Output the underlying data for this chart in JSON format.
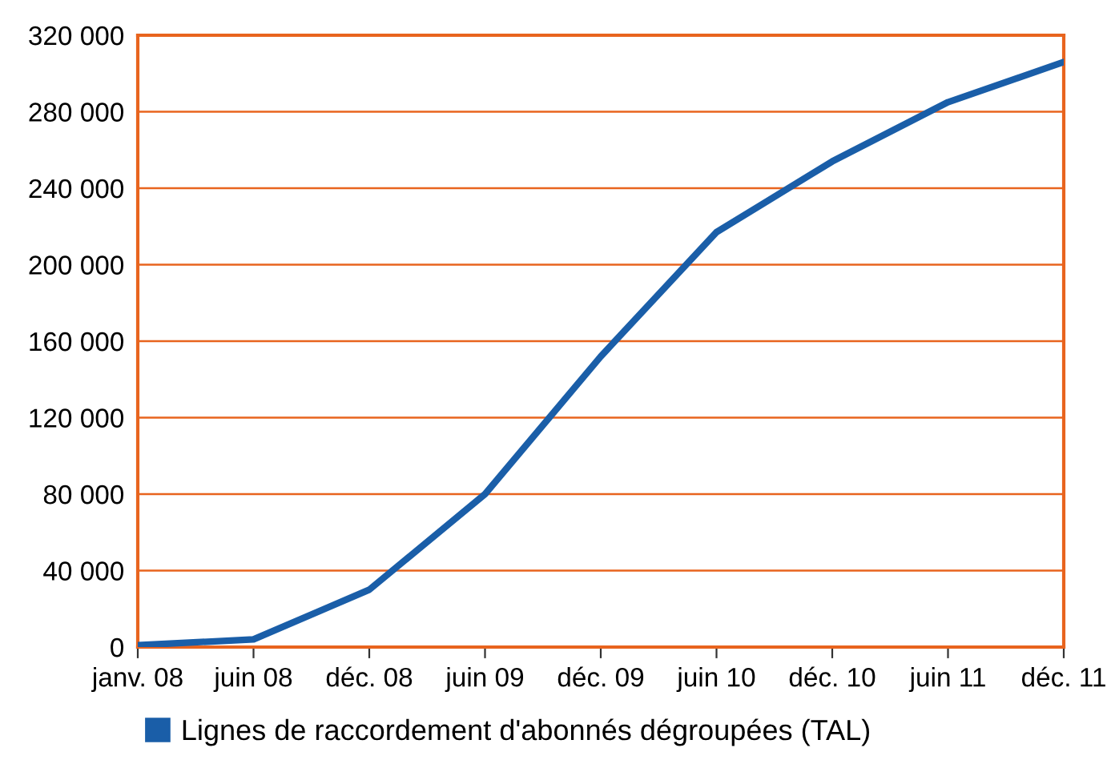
{
  "chart_data": {
    "type": "line",
    "categories": [
      "janv. 08",
      "juin 08",
      "déc. 08",
      "juin 09",
      "déc. 09",
      "juin 10",
      "déc. 10",
      "juin 11",
      "déc. 11"
    ],
    "series": [
      {
        "name": "Lignes de raccordement d'abonnés dégroupées (TAL)",
        "color": "#1a5ea8",
        "values": [
          1000,
          4000,
          30000,
          80000,
          152000,
          217000,
          254000,
          285000,
          306000
        ]
      }
    ],
    "ylim": [
      0,
      320000
    ],
    "yticks": [
      0,
      {
        "value": 40000,
        "label": "40 000"
      },
      {
        "value": 80000,
        "label": "80 000"
      },
      {
        "value": 120000,
        "label": "120 000"
      },
      {
        "value": 160000,
        "label": "160 000"
      },
      {
        "value": 200000,
        "label": "200 000"
      },
      {
        "value": 240000,
        "label": "240 000"
      },
      {
        "value": 280000,
        "label": "280 000"
      },
      {
        "value": 320000,
        "label": "320 000"
      }
    ],
    "grid": "y",
    "legend": "bottom",
    "marker": "none",
    "line_style": "solid"
  }
}
